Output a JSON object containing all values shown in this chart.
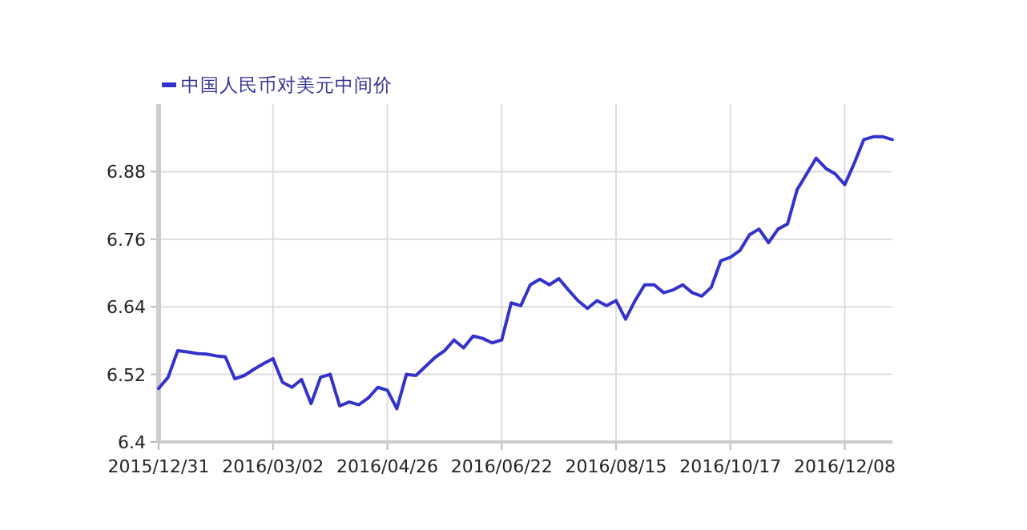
{
  "chart_data": {
    "type": "line",
    "categories": [
      "2015/12/31",
      null,
      null,
      null,
      null,
      null,
      null,
      null,
      null,
      null,
      null,
      null,
      "2016/03/02",
      null,
      null,
      null,
      null,
      null,
      null,
      null,
      null,
      null,
      null,
      null,
      "2016/04/26",
      null,
      null,
      null,
      null,
      null,
      null,
      null,
      null,
      null,
      null,
      null,
      "2016/06/22",
      null,
      null,
      null,
      null,
      null,
      null,
      null,
      null,
      null,
      null,
      null,
      "2016/08/15",
      null,
      null,
      null,
      null,
      null,
      null,
      null,
      null,
      null,
      null,
      null,
      "2016/10/17",
      null,
      null,
      null,
      null,
      null,
      null,
      null,
      null,
      null,
      null,
      null,
      "2016/12/08",
      null,
      null,
      null,
      null,
      null
    ],
    "series": [
      {
        "name": "中国人民币对美元中间价",
        "color": "#3333cc",
        "values": [
          6.495,
          6.515,
          6.562,
          6.56,
          6.557,
          6.556,
          6.553,
          6.551,
          6.512,
          6.518,
          6.529,
          6.539,
          6.548,
          6.506,
          6.497,
          6.511,
          6.468,
          6.515,
          6.52,
          6.464,
          6.471,
          6.466,
          6.478,
          6.497,
          6.492,
          6.459,
          6.52,
          6.518,
          6.534,
          6.55,
          6.562,
          6.581,
          6.567,
          6.588,
          6.584,
          6.576,
          6.581,
          6.647,
          6.642,
          6.679,
          6.689,
          6.679,
          6.69,
          6.67,
          6.651,
          6.637,
          6.651,
          6.642,
          6.651,
          6.618,
          6.651,
          6.679,
          6.679,
          6.665,
          6.67,
          6.679,
          6.665,
          6.659,
          6.675,
          6.722,
          6.728,
          6.74,
          6.768,
          6.778,
          6.754,
          6.778,
          6.787,
          6.848,
          6.876,
          6.904,
          6.886,
          6.876,
          6.857,
          6.895,
          6.937,
          6.942,
          6.942,
          6.937
        ]
      }
    ],
    "ylim": [
      6.4,
      7.0
    ],
    "yticks": [
      6.4,
      6.52,
      6.64,
      6.76,
      6.88
    ],
    "grid": true,
    "legend": "top left",
    "marker": "none",
    "line_style": "solid"
  }
}
